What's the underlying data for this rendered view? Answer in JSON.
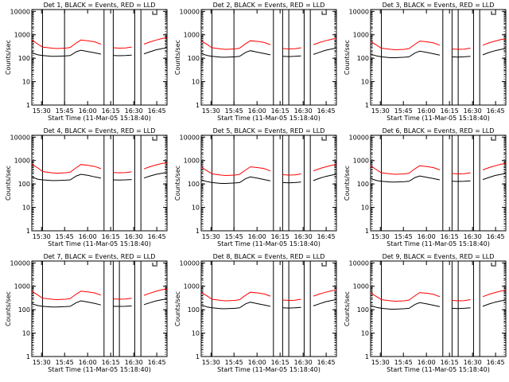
{
  "figure": {
    "xlabel": "Start Time (11-Mar-05 15:18:40)",
    "ylabel": "Counts/sec",
    "x_ticks": [
      "15:30",
      "15:45",
      "16:00",
      "16:15",
      "16:30",
      "16:45"
    ],
    "y_ticks": [
      "1",
      "10",
      "100",
      "1000",
      "10000"
    ]
  },
  "colors": {
    "events": "#000000",
    "lld": "#ff0000",
    "axis": "#000000"
  },
  "chart_data": [
    {
      "type": "line",
      "title": "Det 1, BLACK = Events, RED = LLD",
      "xlabel": "Start Time (11-Mar-05 15:18:40)",
      "ylabel": "Counts/sec",
      "x_unit": "minutes after 15:18:40",
      "y_scale": "log",
      "ylim": [
        1,
        12000
      ],
      "xlim": [
        5,
        93
      ],
      "x": [
        5,
        9,
        12,
        18,
        21,
        27,
        30,
        34,
        37,
        42,
        46,
        50,
        54,
        58,
        62,
        66,
        70,
        74,
        78,
        82,
        86,
        90,
        93
      ],
      "series": [
        {
          "label": "BLACK",
          "values": [
            170,
            140,
            130,
            120,
            120,
            125,
            130,
            190,
            220,
            190,
            170,
            150,
            135,
            130,
            128,
            130,
            135,
            130,
            155,
            190,
            230,
            260,
            280
          ]
        },
        {
          "label": "RED",
          "values": [
            600,
            400,
            300,
            270,
            260,
            270,
            290,
            450,
            600,
            550,
            500,
            400,
            320,
            280,
            270,
            275,
            300,
            320,
            400,
            500,
            600,
            700,
            750
          ]
        }
      ],
      "vertical_lines": [
        12,
        26.3,
        52,
        58,
        72,
        76
      ],
      "gaps": [
        [
          12,
          17
        ],
        [
          52,
          58
        ],
        [
          72,
          76
        ]
      ]
    },
    {
      "type": "line",
      "title": "Det 2, BLACK = Events, RED = LLD",
      "xlabel": "Start Time (11-Mar-05 15:18:40)",
      "ylabel": "Counts/sec",
      "x_unit": "minutes after 15:18:40",
      "y_scale": "log",
      "ylim": [
        1,
        12000
      ],
      "xlim": [
        5,
        93
      ],
      "x": [
        5,
        9,
        12,
        18,
        21,
        27,
        30,
        34,
        37,
        42,
        46,
        50,
        54,
        58,
        62,
        66,
        70,
        74,
        78,
        82,
        86,
        90,
        93
      ],
      "series": [
        {
          "label": "BLACK",
          "values": [
            160,
            130,
            120,
            110,
            110,
            115,
            120,
            180,
            210,
            180,
            160,
            140,
            125,
            120,
            118,
            120,
            125,
            120,
            145,
            180,
            220,
            250,
            270
          ]
        },
        {
          "label": "RED",
          "values": [
            550,
            380,
            280,
            250,
            240,
            250,
            270,
            420,
            560,
            520,
            470,
            380,
            300,
            260,
            250,
            255,
            280,
            300,
            380,
            470,
            560,
            650,
            700
          ]
        }
      ],
      "vertical_lines": [
        12,
        26.3,
        52,
        58,
        62,
        72,
        76
      ],
      "gaps": [
        [
          12,
          17
        ],
        [
          52,
          58
        ],
        [
          72,
          76
        ]
      ]
    },
    {
      "type": "line",
      "title": "Det 3, BLACK = Events, RED = LLD",
      "xlabel": "Start Time (11-Mar-05 15:18:40)",
      "ylabel": "Counts/sec",
      "x_unit": "minutes after 15:18:40",
      "y_scale": "log",
      "ylim": [
        1,
        12000
      ],
      "xlim": [
        5,
        93
      ],
      "x": [
        5,
        9,
        12,
        18,
        21,
        27,
        30,
        34,
        37,
        42,
        46,
        50,
        54,
        58,
        62,
        66,
        70,
        74,
        78,
        82,
        86,
        90,
        93
      ],
      "series": [
        {
          "label": "BLACK",
          "values": [
            150,
            125,
            115,
            105,
            105,
            110,
            115,
            170,
            200,
            175,
            155,
            135,
            120,
            115,
            112,
            115,
            120,
            115,
            140,
            175,
            210,
            240,
            260
          ]
        },
        {
          "label": "RED",
          "values": [
            520,
            360,
            270,
            240,
            230,
            240,
            260,
            400,
            540,
            500,
            450,
            360,
            290,
            250,
            240,
            245,
            270,
            290,
            360,
            450,
            540,
            630,
            680
          ]
        }
      ],
      "vertical_lines": [
        12,
        52,
        58,
        62,
        72,
        76
      ],
      "gaps": [
        [
          12,
          17
        ],
        [
          52,
          58
        ],
        [
          72,
          76
        ]
      ]
    },
    {
      "type": "line",
      "title": "Det 4, BLACK = Events, RED = LLD",
      "xlabel": "Start Time (11-Mar-05 15:18:40)",
      "ylabel": "Counts/sec",
      "x_unit": "minutes after 15:18:40",
      "y_scale": "log",
      "ylim": [
        1,
        12000
      ],
      "xlim": [
        5,
        93
      ],
      "x": [
        5,
        9,
        12,
        18,
        21,
        27,
        30,
        34,
        37,
        42,
        46,
        50,
        54,
        58,
        62,
        66,
        70,
        74,
        78,
        82,
        86,
        90,
        93
      ],
      "series": [
        {
          "label": "BLACK",
          "values": [
            200,
            160,
            150,
            140,
            140,
            145,
            150,
            220,
            260,
            230,
            200,
            180,
            160,
            150,
            148,
            150,
            155,
            150,
            180,
            220,
            260,
            290,
            310
          ]
        },
        {
          "label": "RED",
          "values": [
            700,
            480,
            340,
            300,
            290,
            300,
            320,
            500,
            680,
            620,
            560,
            450,
            360,
            310,
            300,
            305,
            330,
            350,
            440,
            550,
            660,
            760,
            800
          ]
        }
      ],
      "vertical_lines": [
        12,
        52,
        58,
        72,
        76
      ],
      "gaps": [
        [
          12,
          17
        ],
        [
          52,
          58
        ],
        [
          72,
          76
        ]
      ]
    },
    {
      "type": "line",
      "title": "Det 5, BLACK = Events, RED = LLD",
      "xlabel": "Start Time (11-Mar-05 15:18:40)",
      "ylabel": "Counts/sec",
      "x_unit": "minutes after 15:18:40",
      "y_scale": "log",
      "ylim": [
        1,
        12000
      ],
      "xlim": [
        5,
        93
      ],
      "x": [
        5,
        9,
        12,
        18,
        21,
        27,
        30,
        34,
        37,
        42,
        46,
        50,
        54,
        58,
        62,
        66,
        70,
        74,
        78,
        82,
        86,
        90,
        93
      ],
      "series": [
        {
          "label": "BLACK",
          "values": [
            150,
            125,
            115,
            105,
            105,
            110,
            115,
            170,
            200,
            175,
            155,
            135,
            120,
            115,
            112,
            115,
            120,
            115,
            140,
            175,
            210,
            240,
            260
          ]
        },
        {
          "label": "RED",
          "values": [
            520,
            360,
            270,
            240,
            230,
            240,
            260,
            400,
            540,
            500,
            450,
            360,
            290,
            250,
            240,
            245,
            270,
            290,
            360,
            450,
            540,
            630,
            680
          ]
        }
      ],
      "vertical_lines": [
        12,
        26.3,
        52,
        58,
        62,
        72,
        76
      ],
      "gaps": [
        [
          12,
          17
        ],
        [
          52,
          58
        ],
        [
          72,
          76
        ]
      ]
    },
    {
      "type": "line",
      "title": "Det 6, BLACK = Events, RED = LLD",
      "xlabel": "Start Time (11-Mar-05 15:18:40)",
      "ylabel": "Counts/sec",
      "x_unit": "minutes after 15:18:40",
      "y_scale": "log",
      "ylim": [
        1,
        12000
      ],
      "xlim": [
        5,
        93
      ],
      "x": [
        5,
        9,
        12,
        18,
        21,
        27,
        30,
        34,
        37,
        42,
        46,
        50,
        54,
        58,
        62,
        66,
        70,
        74,
        78,
        82,
        86,
        90,
        93
      ],
      "series": [
        {
          "label": "BLACK",
          "values": [
            170,
            140,
            130,
            120,
            120,
            125,
            130,
            190,
            220,
            190,
            170,
            150,
            135,
            130,
            128,
            130,
            135,
            130,
            155,
            190,
            230,
            260,
            280
          ]
        },
        {
          "label": "RED",
          "values": [
            600,
            400,
            300,
            270,
            260,
            270,
            290,
            450,
            600,
            550,
            500,
            400,
            320,
            280,
            270,
            275,
            300,
            320,
            400,
            500,
            600,
            700,
            750
          ]
        }
      ],
      "vertical_lines": [
        12,
        52,
        58,
        62,
        72,
        76
      ],
      "gaps": [
        [
          12,
          17
        ],
        [
          52,
          58
        ],
        [
          72,
          76
        ]
      ]
    },
    {
      "type": "line",
      "title": "Det 7, BLACK = Events, RED = LLD",
      "xlabel": "Start Time (11-Mar-05 15:18:40)",
      "ylabel": "Counts/sec",
      "x_unit": "minutes after 15:18:40",
      "y_scale": "log",
      "ylim": [
        1,
        12000
      ],
      "xlim": [
        5,
        93
      ],
      "x": [
        5,
        9,
        12,
        18,
        21,
        27,
        30,
        34,
        37,
        42,
        46,
        50,
        54,
        58,
        62,
        66,
        70,
        74,
        78,
        82,
        86,
        90,
        93
      ],
      "series": [
        {
          "label": "BLACK",
          "values": [
            180,
            150,
            140,
            130,
            130,
            135,
            140,
            200,
            240,
            210,
            185,
            160,
            145,
            140,
            138,
            140,
            145,
            140,
            165,
            200,
            240,
            270,
            290
          ]
        },
        {
          "label": "RED",
          "values": [
            620,
            420,
            310,
            280,
            270,
            280,
            300,
            470,
            620,
            570,
            520,
            420,
            330,
            290,
            280,
            285,
            310,
            330,
            410,
            510,
            620,
            720,
            770
          ]
        }
      ],
      "vertical_lines": [
        12,
        52,
        58,
        62,
        72,
        76
      ],
      "gaps": [
        [
          12,
          17
        ],
        [
          52,
          58
        ],
        [
          72,
          76
        ]
      ]
    },
    {
      "type": "line",
      "title": "Det 8, BLACK = Events, RED = LLD",
      "xlabel": "Start Time (11-Mar-05 15:18:40)",
      "ylabel": "Counts/sec",
      "x_unit": "minutes after 15:18:40",
      "y_scale": "log",
      "ylim": [
        1,
        12000
      ],
      "xlim": [
        5,
        93
      ],
      "x": [
        5,
        9,
        12,
        18,
        21,
        27,
        30,
        34,
        37,
        42,
        46,
        50,
        54,
        58,
        62,
        66,
        70,
        74,
        78,
        82,
        86,
        90,
        93
      ],
      "series": [
        {
          "label": "BLACK",
          "values": [
            160,
            130,
            120,
            110,
            110,
            115,
            120,
            180,
            210,
            180,
            160,
            140,
            125,
            120,
            118,
            120,
            125,
            120,
            145,
            180,
            220,
            250,
            270
          ]
        },
        {
          "label": "RED",
          "values": [
            550,
            380,
            280,
            250,
            240,
            250,
            270,
            420,
            560,
            520,
            470,
            380,
            300,
            260,
            250,
            255,
            280,
            300,
            380,
            470,
            560,
            650,
            700
          ]
        }
      ],
      "vertical_lines": [
        12,
        52,
        58,
        62,
        72,
        76
      ],
      "gaps": [
        [
          12,
          17
        ],
        [
          52,
          58
        ],
        [
          72,
          76
        ]
      ]
    },
    {
      "type": "line",
      "title": "Det 9, BLACK = Events, RED = LLD",
      "xlabel": "Start Time (11-Mar-05 15:18:40)",
      "ylabel": "Counts/sec",
      "x_unit": "minutes after 15:18:40",
      "y_scale": "log",
      "ylim": [
        1,
        12000
      ],
      "xlim": [
        5,
        93
      ],
      "x": [
        5,
        9,
        12,
        18,
        21,
        27,
        30,
        34,
        37,
        42,
        46,
        50,
        54,
        58,
        62,
        66,
        70,
        74,
        78,
        82,
        86,
        90,
        93
      ],
      "series": [
        {
          "label": "BLACK",
          "values": [
            150,
            125,
            115,
            105,
            105,
            110,
            115,
            170,
            200,
            175,
            155,
            135,
            120,
            115,
            112,
            115,
            120,
            115,
            140,
            175,
            210,
            240,
            260
          ]
        },
        {
          "label": "RED",
          "values": [
            520,
            360,
            270,
            240,
            230,
            240,
            260,
            400,
            540,
            500,
            450,
            360,
            290,
            250,
            240,
            245,
            270,
            290,
            360,
            450,
            540,
            630,
            680
          ]
        }
      ],
      "vertical_lines": [
        12,
        52,
        58,
        62,
        72,
        76
      ],
      "gaps": [
        [
          12,
          17
        ],
        [
          52,
          58
        ],
        [
          72,
          76
        ]
      ]
    }
  ]
}
